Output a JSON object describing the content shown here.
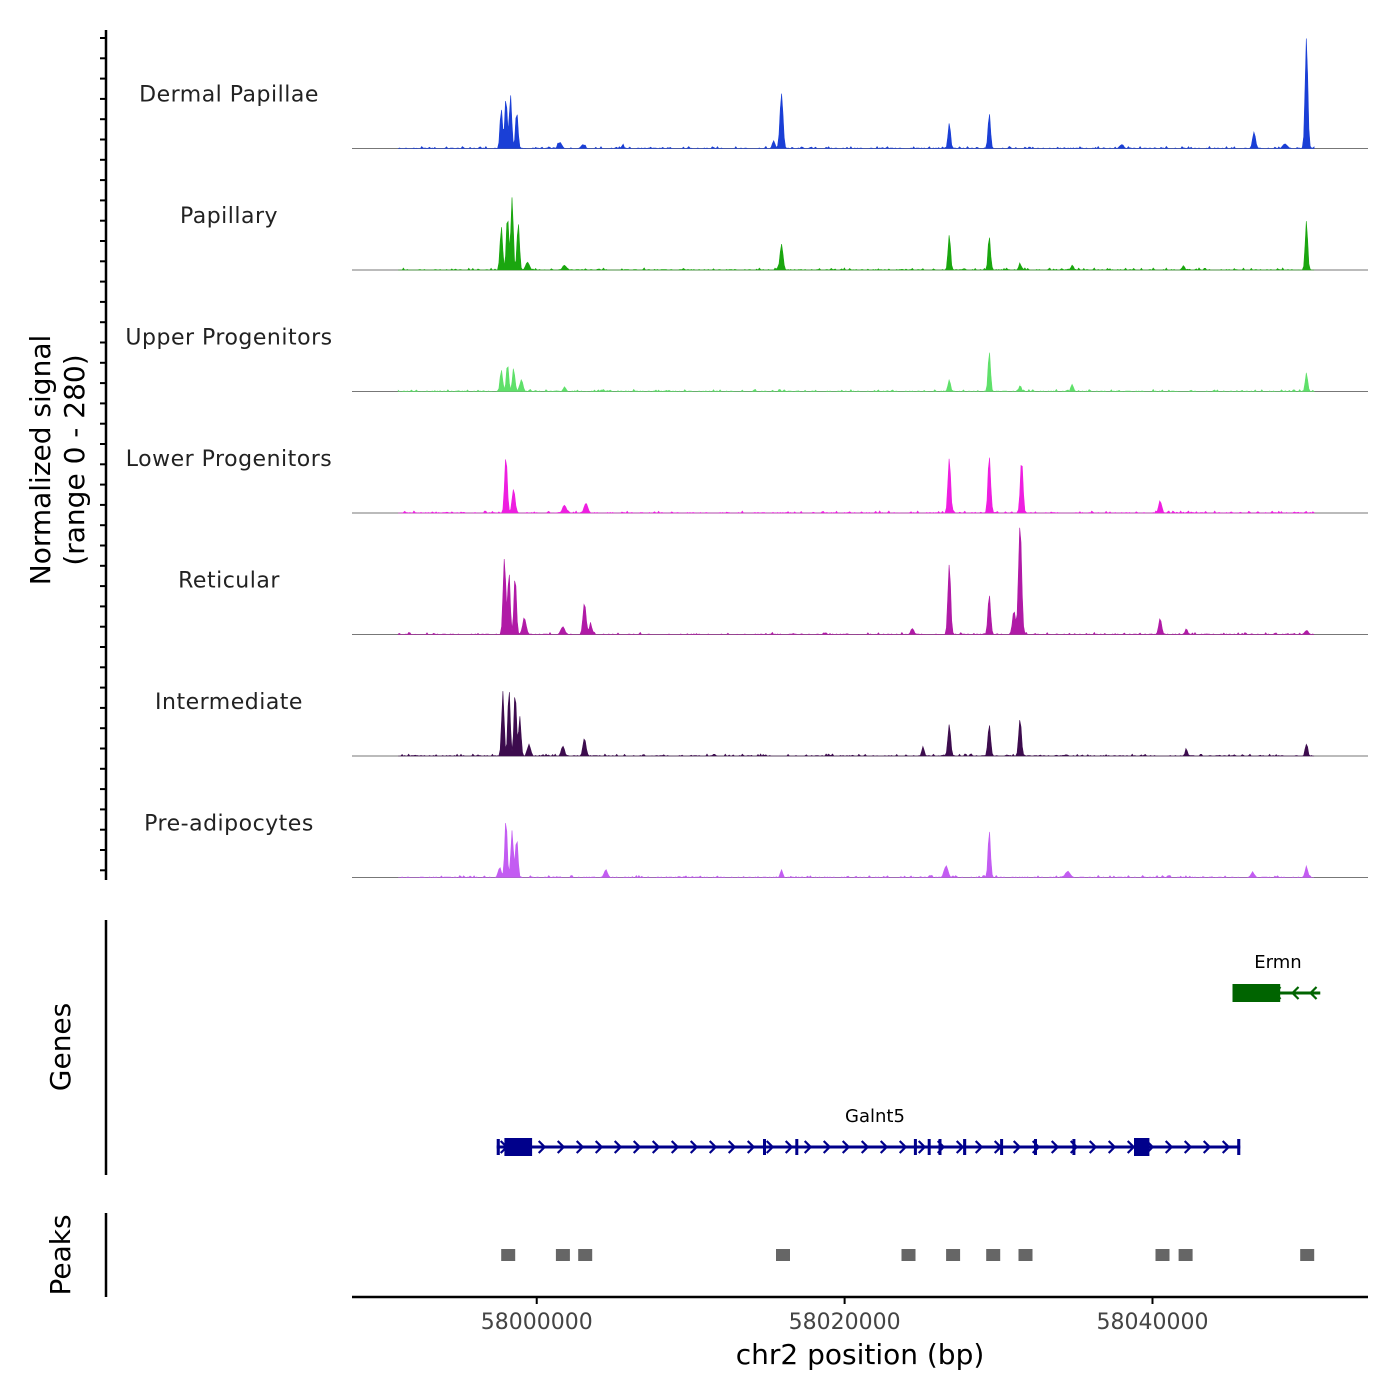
{
  "chart_data": {
    "type": "area",
    "chromosome": "chr2",
    "title": "",
    "xlabel": "chr2 position (bp)",
    "ylabel_line1": "Normalized signal",
    "ylabel_line2": "(range 0 - 280)",
    "ylim": [
      0,
      280
    ],
    "xlim": [
      57988000,
      58054000
    ],
    "x_ticks": [
      58000000,
      58020000,
      58040000
    ],
    "x_tick_labels": [
      "58000000",
      "58020000",
      "58040000"
    ],
    "data_range": [
      57991000,
      58050500
    ],
    "series": [
      {
        "name": "Dermal Papillae",
        "color": "#1a3fd6",
        "peaks": [
          {
            "x": 57997700,
            "h": 100,
            "w": 200
          },
          {
            "x": 57998000,
            "h": 130,
            "w": 200
          },
          {
            "x": 57998300,
            "h": 135,
            "w": 200
          },
          {
            "x": 57998700,
            "h": 95,
            "w": 200
          },
          {
            "x": 58001500,
            "h": 15,
            "w": 300
          },
          {
            "x": 58003000,
            "h": 10,
            "w": 300
          },
          {
            "x": 58005600,
            "h": 12,
            "w": 150
          },
          {
            "x": 58015900,
            "h": 140,
            "w": 250
          },
          {
            "x": 58015400,
            "h": 20,
            "w": 200
          },
          {
            "x": 58026800,
            "h": 65,
            "w": 200
          },
          {
            "x": 58029400,
            "h": 90,
            "w": 200
          },
          {
            "x": 58038000,
            "h": 10,
            "w": 300
          },
          {
            "x": 58046600,
            "h": 40,
            "w": 250
          },
          {
            "x": 58048600,
            "h": 12,
            "w": 300
          },
          {
            "x": 58050000,
            "h": 280,
            "w": 220
          }
        ]
      },
      {
        "name": "Papillary",
        "color": "#1aa60f",
        "peaks": [
          {
            "x": 57997700,
            "h": 110,
            "w": 200
          },
          {
            "x": 57998100,
            "h": 140,
            "w": 200
          },
          {
            "x": 57998400,
            "h": 185,
            "w": 200
          },
          {
            "x": 57998800,
            "h": 120,
            "w": 200
          },
          {
            "x": 57999400,
            "h": 20,
            "w": 300
          },
          {
            "x": 58001800,
            "h": 12,
            "w": 300
          },
          {
            "x": 58015900,
            "h": 65,
            "w": 250
          },
          {
            "x": 58026800,
            "h": 90,
            "w": 200
          },
          {
            "x": 58029400,
            "h": 85,
            "w": 200
          },
          {
            "x": 58031400,
            "h": 15,
            "w": 200
          },
          {
            "x": 58034800,
            "h": 12,
            "w": 200
          },
          {
            "x": 58042000,
            "h": 10,
            "w": 200
          },
          {
            "x": 58050000,
            "h": 125,
            "w": 200
          }
        ]
      },
      {
        "name": "Upper Progenitors",
        "color": "#5fe06a",
        "peaks": [
          {
            "x": 57997700,
            "h": 55,
            "w": 200
          },
          {
            "x": 57998100,
            "h": 70,
            "w": 200
          },
          {
            "x": 57998500,
            "h": 60,
            "w": 200
          },
          {
            "x": 57999000,
            "h": 30,
            "w": 250
          },
          {
            "x": 58001800,
            "h": 12,
            "w": 200
          },
          {
            "x": 58026800,
            "h": 30,
            "w": 200
          },
          {
            "x": 58029400,
            "h": 100,
            "w": 200
          },
          {
            "x": 58031400,
            "h": 15,
            "w": 200
          },
          {
            "x": 58034800,
            "h": 15,
            "w": 200
          },
          {
            "x": 58050000,
            "h": 48,
            "w": 200
          }
        ]
      },
      {
        "name": "Lower Progenitors",
        "color": "#ee1ee0",
        "peaks": [
          {
            "x": 57998000,
            "h": 145,
            "w": 220
          },
          {
            "x": 57998500,
            "h": 60,
            "w": 250
          },
          {
            "x": 58001800,
            "h": 20,
            "w": 300
          },
          {
            "x": 58003200,
            "h": 25,
            "w": 300
          },
          {
            "x": 58026800,
            "h": 140,
            "w": 220
          },
          {
            "x": 58029400,
            "h": 145,
            "w": 220
          },
          {
            "x": 58031500,
            "h": 135,
            "w": 220
          },
          {
            "x": 58040500,
            "h": 30,
            "w": 250
          }
        ]
      },
      {
        "name": "Reticular",
        "color": "#b01aa6",
        "peaks": [
          {
            "x": 57997900,
            "h": 195,
            "w": 220
          },
          {
            "x": 57998200,
            "h": 160,
            "w": 200
          },
          {
            "x": 57998600,
            "h": 150,
            "w": 200
          },
          {
            "x": 57999200,
            "h": 40,
            "w": 300
          },
          {
            "x": 58001700,
            "h": 20,
            "w": 300
          },
          {
            "x": 58003100,
            "h": 80,
            "w": 250
          },
          {
            "x": 58003500,
            "h": 30,
            "w": 200
          },
          {
            "x": 58024400,
            "h": 15,
            "w": 250
          },
          {
            "x": 58026800,
            "h": 180,
            "w": 220
          },
          {
            "x": 58029400,
            "h": 100,
            "w": 220
          },
          {
            "x": 58031400,
            "h": 280,
            "w": 260
          },
          {
            "x": 58031000,
            "h": 60,
            "w": 250
          },
          {
            "x": 58040500,
            "h": 40,
            "w": 250
          },
          {
            "x": 58042200,
            "h": 15,
            "w": 200
          },
          {
            "x": 58050000,
            "h": 10,
            "w": 300
          }
        ]
      },
      {
        "name": "Intermediate",
        "color": "#3d0c4e",
        "peaks": [
          {
            "x": 57997800,
            "h": 165,
            "w": 200
          },
          {
            "x": 57998200,
            "h": 170,
            "w": 200
          },
          {
            "x": 57998600,
            "h": 165,
            "w": 200
          },
          {
            "x": 57998900,
            "h": 100,
            "w": 200
          },
          {
            "x": 57999500,
            "h": 30,
            "w": 250
          },
          {
            "x": 58001700,
            "h": 25,
            "w": 250
          },
          {
            "x": 58003100,
            "h": 45,
            "w": 250
          },
          {
            "x": 58025100,
            "h": 20,
            "w": 200
          },
          {
            "x": 58026800,
            "h": 80,
            "w": 220
          },
          {
            "x": 58029400,
            "h": 80,
            "w": 220
          },
          {
            "x": 58031400,
            "h": 95,
            "w": 220
          },
          {
            "x": 58042200,
            "h": 15,
            "w": 200
          },
          {
            "x": 58050000,
            "h": 30,
            "w": 200
          }
        ]
      },
      {
        "name": "Pre-adipocytes",
        "color": "#c35cf2",
        "peaks": [
          {
            "x": 57997600,
            "h": 25,
            "w": 250
          },
          {
            "x": 57998000,
            "h": 145,
            "w": 200
          },
          {
            "x": 57998400,
            "h": 120,
            "w": 200
          },
          {
            "x": 57998700,
            "h": 100,
            "w": 200
          },
          {
            "x": 58004500,
            "h": 20,
            "w": 250
          },
          {
            "x": 58015900,
            "h": 20,
            "w": 200
          },
          {
            "x": 58026600,
            "h": 30,
            "w": 300
          },
          {
            "x": 58029400,
            "h": 120,
            "w": 200
          },
          {
            "x": 58034500,
            "h": 15,
            "w": 400
          },
          {
            "x": 58046500,
            "h": 12,
            "w": 300
          },
          {
            "x": 58050000,
            "h": 25,
            "w": 250
          }
        ]
      }
    ],
    "genes": [
      {
        "name": "Galnt5",
        "start": 57997400,
        "end": 58045700,
        "strand": "+",
        "color": "#00008b",
        "exons": [
          [
            57997400,
            57997600
          ],
          [
            57997900,
            57999700
          ],
          [
            58014700,
            58014800
          ],
          [
            58016800,
            58016900
          ],
          [
            58024500,
            58024600
          ],
          [
            58025400,
            58025500
          ],
          [
            58026100,
            58026200
          ],
          [
            58027700,
            58027900
          ],
          [
            58030100,
            58030200
          ],
          [
            58032300,
            58032400
          ],
          [
            58034800,
            58034900
          ],
          [
            58038800,
            58039800
          ],
          [
            58045500,
            58045700
          ]
        ]
      },
      {
        "name": "Ermn",
        "start": 58045200,
        "end": 58050900,
        "strand": "-",
        "color": "#006400",
        "exons": [
          [
            58045200,
            58048300
          ]
        ]
      }
    ],
    "peak_regions": [
      {
        "start": 57997700,
        "end": 57998600
      },
      {
        "start": 58001300,
        "end": 58002100
      },
      {
        "start": 58002700,
        "end": 58003600
      },
      {
        "start": 58015600,
        "end": 58016400
      },
      {
        "start": 58023700,
        "end": 58024600
      },
      {
        "start": 58026600,
        "end": 58027500
      },
      {
        "start": 58029200,
        "end": 58030100
      },
      {
        "start": 58031300,
        "end": 58032200
      },
      {
        "start": 58040200,
        "end": 58041100
      },
      {
        "start": 58041700,
        "end": 58042600
      },
      {
        "start": 58049600,
        "end": 58050500
      }
    ],
    "panel_titles": [
      "Genes",
      "Peaks"
    ]
  }
}
